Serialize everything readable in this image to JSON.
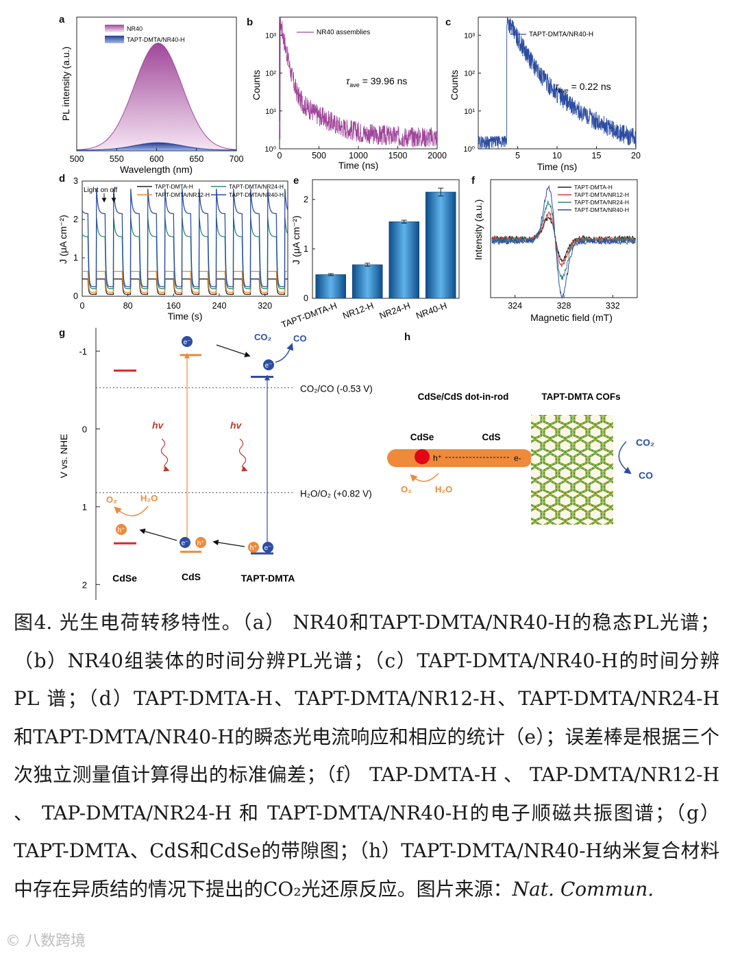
{
  "chart_data": [
    {
      "panel": "a",
      "type": "area",
      "xlabel": "Wavelength (nm)",
      "ylabel": "PL intensity (a.u.)",
      "xlim": [
        500,
        700
      ],
      "xticks": [
        "500",
        "550",
        "600",
        "650",
        "700"
      ],
      "series": [
        {
          "name": "NR40",
          "peak_x": 602,
          "peak_y": 0.8,
          "fwhm": 70,
          "color": "#a0469a"
        },
        {
          "name": "TAPT-DMTA/NR40-H",
          "peak_x": 602,
          "peak_y": 0.055,
          "fwhm": 70,
          "color": "#2c4da0"
        }
      ]
    },
    {
      "panel": "b",
      "type": "line",
      "yscale": "log",
      "xlabel": "Time (ns)",
      "ylabel": "Counts",
      "xlim": [
        0,
        2000
      ],
      "xticks": [
        "0",
        "500",
        "1000",
        "1500",
        "2000"
      ],
      "ylim": [
        1,
        3000
      ],
      "yticks": [
        "10⁰",
        "10¹",
        "10²",
        "10³"
      ],
      "series": [
        {
          "name": "NR40 assemblies",
          "peak": 2500,
          "tau": 40,
          "noise_floor": 2.0,
          "color": "#a0469a"
        }
      ],
      "annotation": {
        "symbol": "τ",
        "sub": "ave",
        "text": " = 39.96 ns"
      }
    },
    {
      "panel": "c",
      "type": "line",
      "yscale": "log",
      "xlabel": "Time (ns)",
      "ylabel": "Counts",
      "xlim": [
        0,
        20
      ],
      "xticks": [
        "5",
        "10",
        "15",
        "20"
      ],
      "ylim": [
        1,
        3000
      ],
      "yticks": [
        "10⁰",
        "10¹",
        "10²",
        "10³"
      ],
      "series": [
        {
          "name": "TAPT-DMTA/NR40-H",
          "rise": 3.6,
          "peak": 2600,
          "tau": 1.1,
          "noise_floor": 1.0,
          "color": "#2c4da0"
        }
      ],
      "annotation": {
        "symbol": "τ",
        "sub": "ave",
        "text": " = 0.22 ns"
      }
    },
    {
      "panel": "d",
      "type": "line",
      "xlabel": "Time (s)",
      "ylabel": "J (μA cm⁻²)",
      "xlim": [
        0,
        360
      ],
      "xticks": [
        "0",
        "80",
        "160",
        "240",
        "320"
      ],
      "ylim": [
        0,
        3
      ],
      "yticks": [
        "0",
        "1",
        "2",
        "3"
      ],
      "annotation": "Light on  off",
      "cycles": {
        "period": 30,
        "on_duration": 15,
        "count": 10
      },
      "series": [
        {
          "name": "TAPT-DMTA-H",
          "on_level": 0.45,
          "spike": 0.45,
          "off_level": 0.05,
          "color": "#222222"
        },
        {
          "name": "TAPT-DMTA/NR12-H",
          "on_level": 0.65,
          "spike": 0.65,
          "off_level": 0.1,
          "color": "#f0842a"
        },
        {
          "name": "TAPT-DMTA/NR24-H",
          "on_level": 1.55,
          "spike": 2.05,
          "off_level": 0.2,
          "color": "#2a8a78"
        },
        {
          "name": "TAPT-DMTA/NR40-H",
          "on_level": 2.15,
          "spike": 2.8,
          "off_level": 0.25,
          "color": "#2c4da0"
        }
      ]
    },
    {
      "panel": "e",
      "type": "bar",
      "ylabel": "J (μA cm⁻²)",
      "ylim": [
        0,
        2.4
      ],
      "yticks": [
        "0",
        "1",
        "2"
      ],
      "categories": [
        "TAPT-DMTA-H",
        "NR12-H",
        "NR24-H",
        "NR40-H"
      ],
      "values": [
        0.48,
        0.68,
        1.55,
        2.15
      ],
      "errors": [
        0.02,
        0.03,
        0.03,
        0.08
      ]
    },
    {
      "panel": "f",
      "type": "line",
      "xlabel": "Magnetic field (mT)",
      "ylabel": "Intensity (a.u.)",
      "xlim": [
        322,
        334
      ],
      "xticks": [
        "324",
        "328",
        "332"
      ],
      "series": [
        {
          "name": "TAPT-DMTA-H",
          "amp": 0.45,
          "color": "#222222"
        },
        {
          "name": "TAPT-DMTA/NR12-H",
          "amp": 0.55,
          "color": "#d43a3a"
        },
        {
          "name": "TAPT-DMTA/NR24-H",
          "amp": 0.8,
          "color": "#2a8a78"
        },
        {
          "name": "TAPT-DMTA/NR40-H",
          "amp": 1.15,
          "color": "#2c4da0"
        }
      ]
    }
  ],
  "panel_labels": [
    "a",
    "b",
    "c",
    "d",
    "e",
    "f",
    "g",
    "h"
  ],
  "diagram_g": {
    "axis_label": "V vs. NHE",
    "ylim": [
      -1.3,
      2.2
    ],
    "ticks": [
      "-1",
      "0",
      "1",
      "2"
    ],
    "ref_lines": [
      {
        "label": "CO₂/CO (-0.53 V)",
        "value": -0.53
      },
      {
        "label": "H₂O/O₂  (+0.82 V)",
        "value": 0.82
      }
    ],
    "materials": [
      {
        "name": "CdSe",
        "cb": -0.75,
        "vb": 1.47,
        "color": "#d62828"
      },
      {
        "name": "CdS",
        "cb": -0.95,
        "vb": 1.58,
        "color": "#ee8a3a"
      },
      {
        "name": "TAPT-DMTA",
        "cb": -0.67,
        "vb": 1.6,
        "color": "#2c4da0"
      }
    ],
    "hv": "hv",
    "electron": "e⁻",
    "hole": "h⁺",
    "co2": "CO₂",
    "co": "CO",
    "o2": "O₂",
    "h2o": "H₂O"
  },
  "diagram_h": {
    "left_title": "CdSe/CdS dot-in-rod",
    "right_title": "TAPT-DMTA COFs",
    "cdse": "CdSe",
    "cds": "CdS",
    "hole": "h⁺",
    "electron": "e-",
    "o2": "O₂",
    "h2o": "H₂O",
    "co2": "CO₂",
    "co": "CO"
  },
  "caption": {
    "text": "图4. 光生电荷转移特性。（a） NR40和TAPT-DMTA/NR40-H的稳态PL光谱；（b）NR40组装体的时间分辨PL光谱；（c）TAPT-DMTA/NR40-H的时间分辨 PL 谱；（d）TAPT-DMTA-H、TAPT-DMTA/NR12-H、TAPT-DMTA/NR24-H和TAPT-DMTA/NR40-H的瞬态光电流响应和相应的统计（e）；误差棒是根据三个次独立测量值计算得出的标准偏差；（f） TAP-DMTA-H 、 TAP-DMTA/NR12-H 、 TAP-DMTA/NR24-H 和 TAPT-DMTA/NR40-H的电子顺磁共振图谱；（g） TAPT-DMTA、CdS和CdSe的带隙图；（h）TAPT-DMTA/NR40-H纳米复合材料中存在异质结的情况下提出的CO₂光还原反应。图片来源：",
    "source": "Nat. Commun."
  },
  "watermark": "© 八数跨境"
}
